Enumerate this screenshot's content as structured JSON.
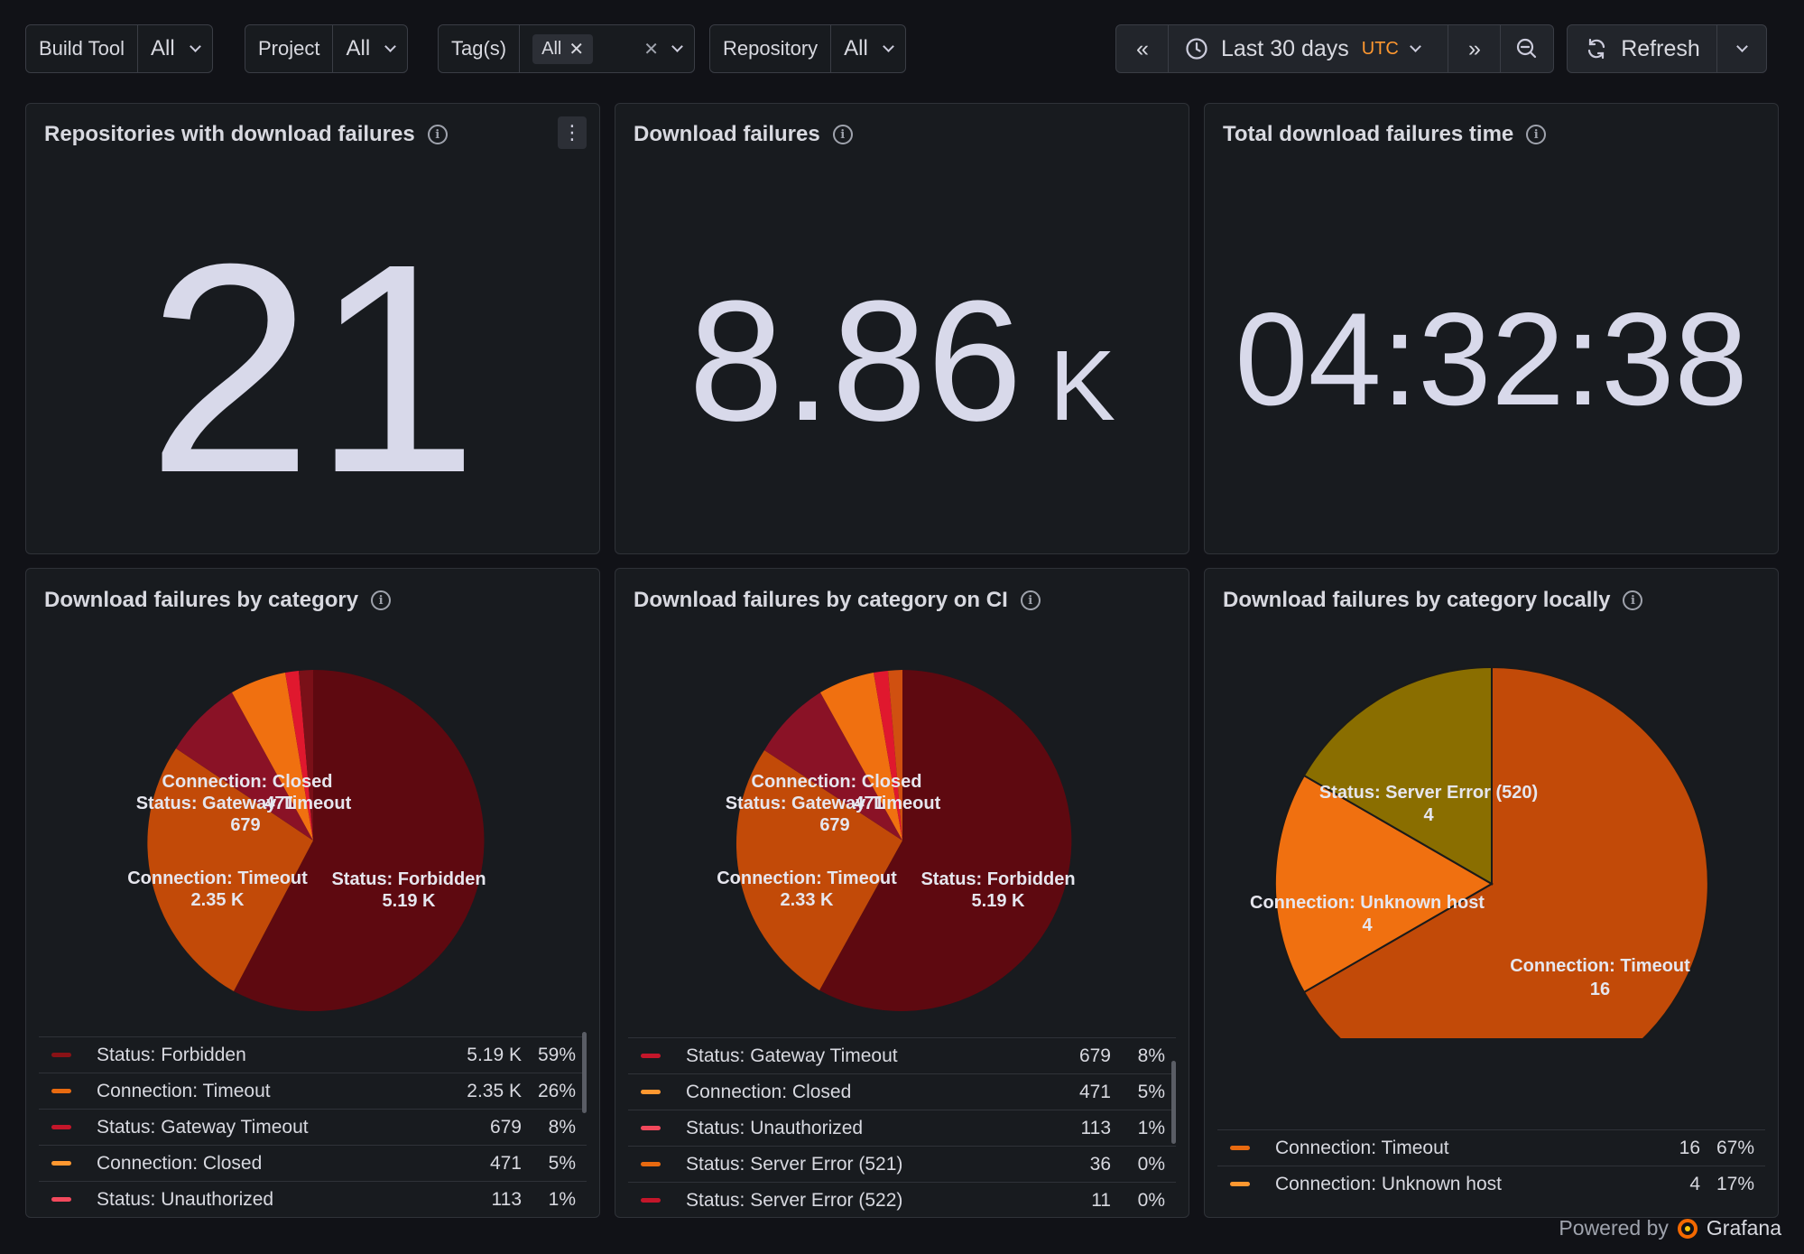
{
  "filters": {
    "build_tool": {
      "label": "Build Tool",
      "value": "All"
    },
    "project": {
      "label": "Project",
      "value": "All"
    },
    "tags": {
      "label": "Tag(s)",
      "chip": "All"
    },
    "repository": {
      "label": "Repository",
      "value": "All"
    }
  },
  "time": {
    "range": "Last 30 days",
    "tz": "UTC"
  },
  "refresh_label": "Refresh",
  "stats": {
    "repos": {
      "title": "Repositories with download failures",
      "value": "21"
    },
    "failures": {
      "title": "Download failures",
      "value": "8.86",
      "unit": "K"
    },
    "time": {
      "title": "Total download failures time",
      "value": "04:32:38"
    }
  },
  "pies": {
    "all": {
      "title": "Download failures by category",
      "legend": [
        {
          "name": "Status: Forbidden",
          "value": "5.19 K",
          "pct": "59%",
          "color": "#8a1216"
        },
        {
          "name": "Connection: Timeout",
          "value": "2.35 K",
          "pct": "26%",
          "color": "#e86a10"
        },
        {
          "name": "Status: Gateway Timeout",
          "value": "679",
          "pct": "8%",
          "color": "#c4162a"
        },
        {
          "name": "Connection: Closed",
          "value": "471",
          "pct": "5%",
          "color": "#ff9830"
        },
        {
          "name": "Status: Unauthorized",
          "value": "113",
          "pct": "1%",
          "color": "#f2495c"
        }
      ],
      "labels": {
        "forbidden": "Status: Forbidden",
        "forbidden_v": "5.19 K",
        "timeout": "Connection: Timeout",
        "timeout_v": "2.35 K",
        "gateway": "Status: Gateway Timeout",
        "gateway_v": "679",
        "closed": "Connection: Closed",
        "closed_v": "471"
      }
    },
    "ci": {
      "title": "Download failures by category on CI",
      "legend": [
        {
          "name": "Status: Gateway Timeout",
          "value": "679",
          "pct": "8%",
          "color": "#c4162a"
        },
        {
          "name": "Connection: Closed",
          "value": "471",
          "pct": "5%",
          "color": "#ff9830"
        },
        {
          "name": "Status: Unauthorized",
          "value": "113",
          "pct": "1%",
          "color": "#f2495c"
        },
        {
          "name": "Status: Server Error (521)",
          "value": "36",
          "pct": "0%",
          "color": "#e86a10"
        },
        {
          "name": "Status: Server Error (522)",
          "value": "11",
          "pct": "0%",
          "color": "#c4162a"
        }
      ],
      "labels": {
        "forbidden": "Status: Forbidden",
        "forbidden_v": "5.19 K",
        "timeout": "Connection: Timeout",
        "timeout_v": "2.33 K",
        "gateway": "Status: Gateway Timeout",
        "gateway_v": "679",
        "closed": "Connection: Closed",
        "closed_v": "471"
      }
    },
    "local": {
      "title": "Download failures by category locally",
      "legend": [
        {
          "name": "Connection: Timeout",
          "value": "16",
          "pct": "67%",
          "color": "#e86a10"
        },
        {
          "name": "Connection: Unknown host",
          "value": "4",
          "pct": "17%",
          "color": "#ff9830"
        }
      ],
      "labels": {
        "timeout": "Connection: Timeout",
        "timeout_v": "16",
        "unknown": "Connection: Unknown host",
        "unknown_v": "4",
        "server": "Status: Server Error (520)",
        "server_v": "4"
      }
    }
  },
  "footer": {
    "powered": "Powered by",
    "brand": "Grafana"
  }
}
